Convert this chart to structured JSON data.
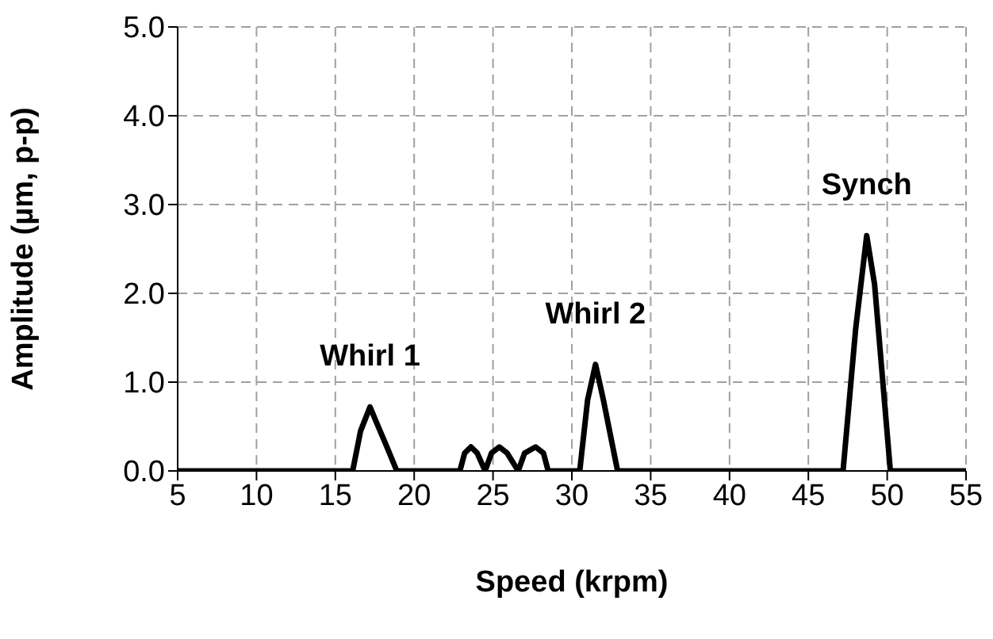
{
  "chart_data": {
    "type": "line",
    "xlabel": "Speed (krpm)",
    "ylabel": "Amplitude (µm, p-p)",
    "x": [
      5,
      16.1,
      16.6,
      17.2,
      17.6,
      18.2,
      18.9,
      22.9,
      23.2,
      23.6,
      24.0,
      24.5,
      24.9,
      25.4,
      25.9,
      26.6,
      27.0,
      27.7,
      28.2,
      28.5,
      30.5,
      31.0,
      31.5,
      32.0,
      32.9,
      47.2,
      48.0,
      48.7,
      49.2,
      50.2,
      55
    ],
    "series": [
      {
        "color": "#000000",
        "values": [
          0,
          0,
          0.45,
          0.72,
          0.55,
          0.3,
          0,
          0,
          0.2,
          0.27,
          0.2,
          0,
          0.2,
          0.27,
          0.2,
          0,
          0.2,
          0.27,
          0.2,
          0,
          0,
          0.8,
          1.2,
          0.8,
          0,
          0,
          1.6,
          2.65,
          2.1,
          0,
          0
        ]
      }
    ],
    "xlim": [
      5,
      55
    ],
    "xticks": [
      5,
      10,
      15,
      20,
      25,
      30,
      35,
      40,
      45,
      50,
      55
    ],
    "ylim": [
      0,
      5
    ],
    "yticks": [
      {
        "value": 0,
        "label": "0.0"
      },
      {
        "value": 1,
        "label": "1.0"
      },
      {
        "value": 2,
        "label": "2.0"
      },
      {
        "value": 3,
        "label": "3.0"
      },
      {
        "value": 4,
        "label": "4.0"
      },
      {
        "value": 5,
        "label": "5.0"
      }
    ],
    "grid": true,
    "legend": false,
    "marker": "none",
    "line_style": "solid",
    "annotations": [
      {
        "text": "Whirl 1",
        "x": 17.2,
        "y": 0.72
      },
      {
        "text": "Whirl 2",
        "x": 31.5,
        "y": 1.2
      },
      {
        "text": "Synch",
        "x": 48.7,
        "y": 2.65
      }
    ]
  }
}
